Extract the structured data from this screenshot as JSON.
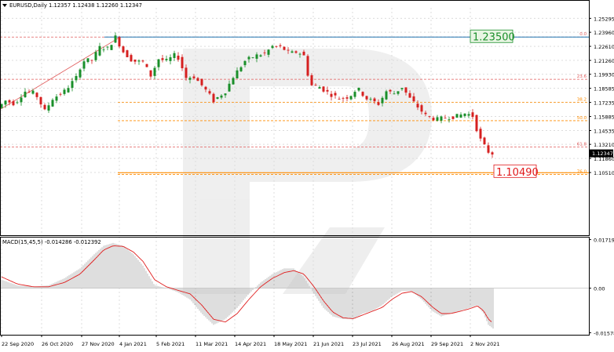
{
  "chart_data": [
    {
      "type": "candlestick",
      "header": "EURUSD,Daily  1.12357 1.12438 1.12260 1.12347",
      "symbol_menu_icon": "triangle-down-icon",
      "ylim": [
        1.045,
        1.263
      ],
      "y_ticks": [
        "1.25295",
        "1.23960",
        "1.22610",
        "1.21260",
        "1.19930",
        "1.18585",
        "1.17235",
        "1.15885",
        "1.14535",
        "1.13210",
        "1.11860",
        "1.10510"
      ],
      "y_tick_values": [
        1.25295,
        1.2396,
        1.2261,
        1.2126,
        1.1993,
        1.18585,
        1.17235,
        1.15885,
        1.14535,
        1.1321,
        1.1186,
        1.1051
      ],
      "x_ticks": [
        "22 Sep 2020",
        "26 Oct 2020",
        "27 Nov 2020",
        "4 Jan 2021",
        "5 Feb 2021",
        "11 Mar 2021",
        "14 Apr 2021",
        "18 May 2021",
        "21 Jun 2021",
        "23 Jul 2021",
        "26 Aug 2021",
        "29 Sep 2021",
        "2 Nov 2021"
      ],
      "current_price": "1.12347",
      "current_price_value": 1.12347,
      "price_path": [
        [
          0,
          1.167
        ],
        [
          10,
          1.174
        ],
        [
          22,
          1.171
        ],
        [
          34,
          1.183
        ],
        [
          48,
          1.181
        ],
        [
          60,
          1.164
        ],
        [
          70,
          1.176
        ],
        [
          85,
          1.183
        ],
        [
          100,
          1.196
        ],
        [
          108,
          1.212
        ],
        [
          120,
          1.213
        ],
        [
          130,
          1.225
        ],
        [
          140,
          1.224
        ],
        [
          150,
          1.235
        ],
        [
          160,
          1.221
        ],
        [
          172,
          1.212
        ],
        [
          185,
          1.211
        ],
        [
          195,
          1.198
        ],
        [
          205,
          1.214
        ],
        [
          215,
          1.212
        ],
        [
          228,
          1.219
        ],
        [
          240,
          1.196
        ],
        [
          250,
          1.197
        ],
        [
          262,
          1.187
        ],
        [
          275,
          1.174
        ],
        [
          290,
          1.183
        ],
        [
          300,
          1.197
        ],
        [
          315,
          1.212
        ],
        [
          328,
          1.217
        ],
        [
          340,
          1.219
        ],
        [
          350,
          1.226
        ],
        [
          362,
          1.225
        ],
        [
          372,
          1.219
        ],
        [
          382,
          1.221
        ],
        [
          390,
          1.217
        ],
        [
          398,
          1.189
        ],
        [
          410,
          1.187
        ],
        [
          422,
          1.181
        ],
        [
          435,
          1.176
        ],
        [
          448,
          1.178
        ],
        [
          458,
          1.186
        ],
        [
          470,
          1.176
        ],
        [
          485,
          1.171
        ],
        [
          495,
          1.183
        ],
        [
          505,
          1.181
        ],
        [
          515,
          1.187
        ],
        [
          525,
          1.176
        ],
        [
          535,
          1.168
        ],
        [
          546,
          1.159
        ],
        [
          560,
          1.156
        ],
        [
          572,
          1.158
        ],
        [
          585,
          1.159
        ],
        [
          596,
          1.162
        ],
        [
          606,
          1.159
        ],
        [
          612,
          1.141
        ],
        [
          618,
          1.132
        ],
        [
          623,
          1.128
        ],
        [
          626,
          1.1235
        ]
      ],
      "fib_levels": [
        {
          "label": "0.0",
          "value": 1.235,
          "color": "#e05a5a"
        },
        {
          "label": "23.6",
          "value": 1.1945,
          "color": "#e05a5a"
        },
        {
          "label": "38.2",
          "value": 1.1725,
          "color": "#ff8c00"
        },
        {
          "label": "50.0",
          "value": 1.1548,
          "color": "#ff8c00"
        },
        {
          "label": "61.8",
          "value": 1.1295,
          "color": "#e05a5a"
        },
        {
          "label": "76.0",
          "value": 1.1033,
          "color": "#ff8c00"
        }
      ],
      "resistance": {
        "label": "1.23500",
        "value": 1.235,
        "color": "#1f78b4"
      },
      "support": {
        "label": "1.10490",
        "value": 1.1049,
        "color": "#ff8c00"
      },
      "colors": {
        "up": "#1a8f2a",
        "down": "#d62020",
        "grid": "#dcdcdc",
        "axis": "#000000",
        "trend": "#e05a5a",
        "resistance_label_bg": "#e8f5e3",
        "resistance_label_text": "#1a8f2a",
        "support_label_text": "#e0191b"
      }
    },
    {
      "type": "macd",
      "header": "MACD(15,45,5) -0.014286 -0.012392",
      "ylim": [
        -0.0165,
        0.0182
      ],
      "y_ticks": [
        "0.017198",
        "0.00",
        "-0.015784"
      ],
      "y_tick_values": [
        0.017198,
        0.0,
        -0.015784
      ],
      "zero_value": 0.0,
      "histogram_path": [
        [
          0,
          0.003
        ],
        [
          20,
          0.001
        ],
        [
          40,
          0.0005
        ],
        [
          60,
          0.001
        ],
        [
          80,
          0.0035
        ],
        [
          100,
          0.007
        ],
        [
          118,
          0.012
        ],
        [
          130,
          0.015
        ],
        [
          142,
          0.016
        ],
        [
          155,
          0.015
        ],
        [
          168,
          0.012
        ],
        [
          180,
          0.008
        ],
        [
          195,
          0.001
        ],
        [
          210,
          0.0
        ],
        [
          225,
          -0.0015
        ],
        [
          240,
          -0.004
        ],
        [
          255,
          -0.009
        ],
        [
          270,
          -0.013
        ],
        [
          285,
          -0.011
        ],
        [
          300,
          -0.007
        ],
        [
          315,
          -0.002
        ],
        [
          330,
          0.002
        ],
        [
          345,
          0.005
        ],
        [
          360,
          0.007
        ],
        [
          372,
          0.007
        ],
        [
          385,
          0.004
        ],
        [
          398,
          -0.002
        ],
        [
          410,
          -0.007
        ],
        [
          422,
          -0.01
        ],
        [
          435,
          -0.011
        ],
        [
          448,
          -0.011
        ],
        [
          460,
          -0.009
        ],
        [
          472,
          -0.008
        ],
        [
          485,
          -0.006
        ],
        [
          497,
          -0.003
        ],
        [
          510,
          -0.001
        ],
        [
          522,
          -0.001
        ],
        [
          535,
          -0.004
        ],
        [
          548,
          -0.008
        ],
        [
          560,
          -0.01
        ],
        [
          572,
          -0.009
        ],
        [
          584,
          -0.008
        ],
        [
          596,
          -0.007
        ],
        [
          606,
          -0.006
        ],
        [
          614,
          -0.009
        ],
        [
          620,
          -0.013
        ],
        [
          626,
          -0.0143
        ]
      ],
      "signal_path": [
        [
          0,
          0.004
        ],
        [
          20,
          0.0015
        ],
        [
          40,
          0.0005
        ],
        [
          60,
          0.0005
        ],
        [
          80,
          0.002
        ],
        [
          100,
          0.005
        ],
        [
          118,
          0.01
        ],
        [
          130,
          0.0135
        ],
        [
          142,
          0.015
        ],
        [
          155,
          0.0148
        ],
        [
          168,
          0.0128
        ],
        [
          180,
          0.0095
        ],
        [
          195,
          0.003
        ],
        [
          210,
          0.0005
        ],
        [
          225,
          -0.0008
        ],
        [
          240,
          -0.002
        ],
        [
          255,
          -0.006
        ],
        [
          270,
          -0.011
        ],
        [
          285,
          -0.012
        ],
        [
          300,
          -0.009
        ],
        [
          315,
          -0.004
        ],
        [
          330,
          0.0005
        ],
        [
          345,
          0.0035
        ],
        [
          360,
          0.0055
        ],
        [
          372,
          0.0062
        ],
        [
          385,
          0.005
        ],
        [
          398,
          0.0005
        ],
        [
          410,
          -0.0045
        ],
        [
          422,
          -0.0085
        ],
        [
          435,
          -0.0105
        ],
        [
          448,
          -0.0108
        ],
        [
          460,
          -0.0095
        ],
        [
          472,
          -0.0082
        ],
        [
          485,
          -0.0068
        ],
        [
          497,
          -0.004
        ],
        [
          510,
          -0.0018
        ],
        [
          522,
          -0.0012
        ],
        [
          535,
          -0.003
        ],
        [
          548,
          -0.0065
        ],
        [
          560,
          -0.009
        ],
        [
          572,
          -0.009
        ],
        [
          584,
          -0.0082
        ],
        [
          596,
          -0.0073
        ],
        [
          606,
          -0.0063
        ],
        [
          614,
          -0.008
        ],
        [
          620,
          -0.011
        ],
        [
          626,
          -0.0124
        ]
      ],
      "colors": {
        "histogram": "#bdbdbd",
        "signal": "#e02020",
        "zero_line": "#c8c8c8"
      }
    }
  ]
}
